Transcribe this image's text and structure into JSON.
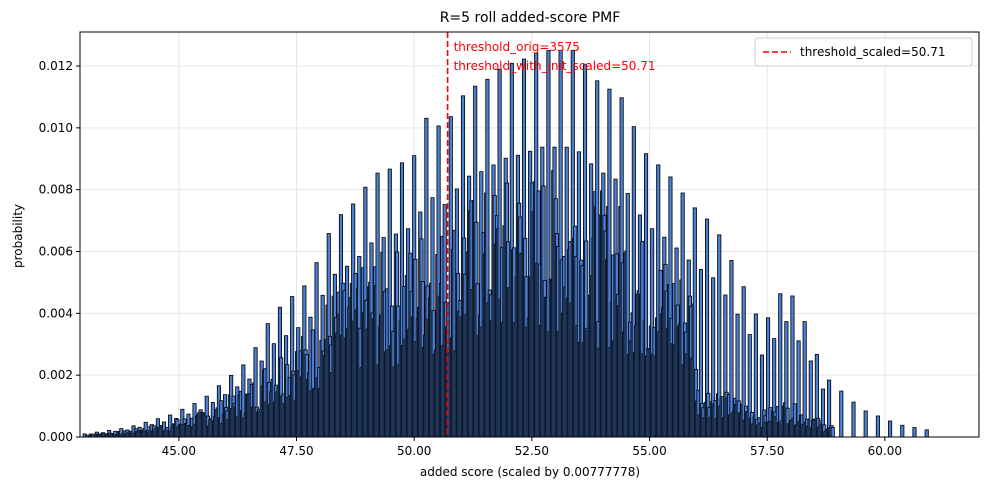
{
  "chart_data": {
    "type": "bar",
    "title": "R=5 roll added-score PMF",
    "xlabel": "added score (scaled by 0.00777778)",
    "ylabel": "probability",
    "xlim": [
      42.9,
      62.0
    ],
    "ylim": [
      0,
      0.0131
    ],
    "xticks": [
      45.0,
      47.5,
      50.0,
      52.5,
      55.0,
      57.5,
      60.0
    ],
    "xtick_labels": [
      "45.00",
      "47.50",
      "50.00",
      "52.50",
      "55.00",
      "57.50",
      "60.00"
    ],
    "yticks": [
      0,
      0.002,
      0.004,
      0.006,
      0.008,
      0.01,
      0.012
    ],
    "ytick_labels": [
      "0.000",
      "0.002",
      "0.004",
      "0.006",
      "0.008",
      "0.010",
      "0.012"
    ],
    "grid": true,
    "bar_color": "#4a7fd4",
    "bar_edge_color": "#000000",
    "threshold": {
      "x": 50.71,
      "color": "#ff0000",
      "legend_label": "threshold_scaled=50.71",
      "annotation_lines": [
        "threshold_orig=3575",
        "threshold_with_init_scaled=50.71"
      ]
    },
    "legend_position": "top-right",
    "highlighted_bars": [
      {
        "x": 43.0,
        "value": 0.0001
      },
      {
        "x": 43.9,
        "value": 0.0003
      },
      {
        "x": 44.8,
        "value": 0.0007
      },
      {
        "x": 45.5,
        "value": 0.0012
      },
      {
        "x": 46.5,
        "value": 0.0025
      },
      {
        "x": 47.0,
        "value": 0.004
      },
      {
        "x": 47.75,
        "value": 0.005
      },
      {
        "x": 48.3,
        "value": 0.007
      },
      {
        "x": 48.75,
        "value": 0.0076
      },
      {
        "x": 49.15,
        "value": 0.0085
      },
      {
        "x": 49.55,
        "value": 0.0087
      },
      {
        "x": 50.0,
        "value": 0.0091
      },
      {
        "x": 50.3,
        "value": 0.0105
      },
      {
        "x": 50.6,
        "value": 0.0099
      },
      {
        "x": 51.1,
        "value": 0.0112
      },
      {
        "x": 51.5,
        "value": 0.0115
      },
      {
        "x": 51.9,
        "value": 0.012
      },
      {
        "x": 52.3,
        "value": 0.0122
      },
      {
        "x": 52.7,
        "value": 0.0125
      },
      {
        "x": 53.4,
        "value": 0.0125
      },
      {
        "x": 53.9,
        "value": 0.0115
      },
      {
        "x": 54.4,
        "value": 0.011
      },
      {
        "x": 54.9,
        "value": 0.0092
      },
      {
        "x": 55.4,
        "value": 0.0085
      },
      {
        "x": 55.9,
        "value": 0.0075
      },
      {
        "x": 56.4,
        "value": 0.0068
      },
      {
        "x": 56.9,
        "value": 0.0052
      },
      {
        "x": 57.4,
        "value": 0.0035
      },
      {
        "x": 57.9,
        "value": 0.005
      },
      {
        "x": 58.4,
        "value": 0.0034
      },
      {
        "x": 58.7,
        "value": 0.002
      },
      {
        "x": 59.5,
        "value": 0.0009
      },
      {
        "x": 60.3,
        "value": 0.0004
      },
      {
        "x": 61.0,
        "value": 0.0002
      }
    ]
  }
}
